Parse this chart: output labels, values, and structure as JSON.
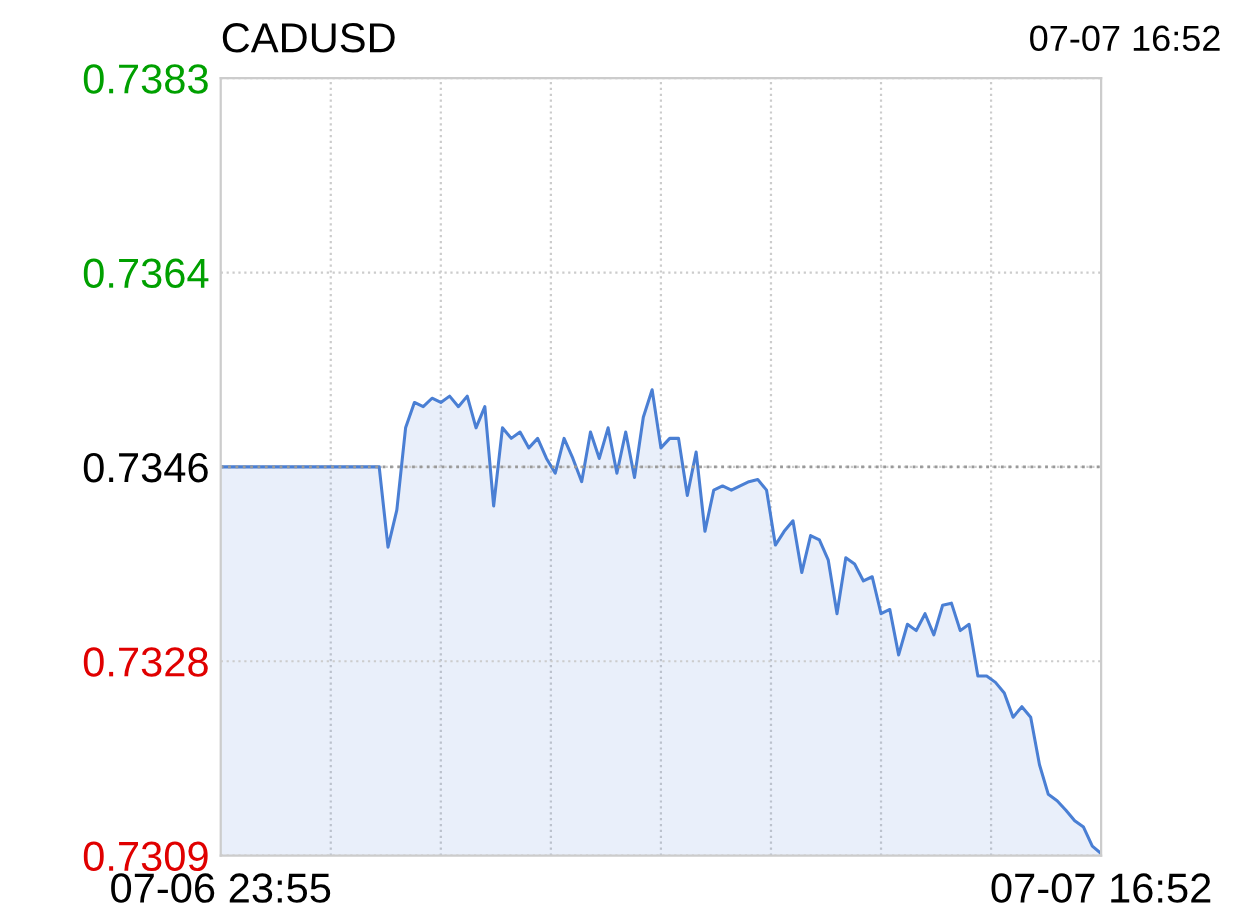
{
  "chart_data": {
    "type": "area",
    "title": "CADUSD",
    "annotations": [
      "07-07 16:52"
    ],
    "categories": [
      "07-06 23:55",
      null,
      null,
      null,
      null,
      null,
      null,
      null,
      null,
      null,
      null,
      null,
      null,
      null,
      null,
      null,
      null,
      null,
      null,
      null,
      null,
      null,
      null,
      null,
      null,
      null,
      null,
      null,
      null,
      null,
      null,
      null,
      null,
      null,
      null,
      null,
      null,
      null,
      null,
      null,
      null,
      null,
      null,
      null,
      null,
      null,
      null,
      null,
      null,
      null,
      null,
      null,
      null,
      null,
      null,
      null,
      null,
      null,
      null,
      null,
      null,
      null,
      null,
      null,
      null,
      null,
      null,
      null,
      null,
      null,
      null,
      null,
      null,
      null,
      null,
      null,
      null,
      null,
      null,
      null,
      null,
      null,
      null,
      null,
      null,
      null,
      null,
      null,
      null,
      null,
      null,
      null,
      null,
      null,
      null,
      null,
      null,
      null,
      null,
      null,
      "07-07 16:52"
    ],
    "series": [
      {
        "color": "#4a7fd4",
        "values": [
          0.7346,
          0.7346,
          0.7346,
          0.7346,
          0.7346,
          0.7346,
          0.7346,
          0.7346,
          0.7346,
          0.7346,
          0.7346,
          0.7346,
          0.7346,
          0.7346,
          0.7346,
          0.7346,
          0.7346,
          0.7346,
          0.7346,
          0.73384,
          0.73419,
          0.73497,
          0.73521,
          0.73517,
          0.73525,
          0.73521,
          0.73527,
          0.73517,
          0.73527,
          0.73497,
          0.73517,
          0.73423,
          0.73497,
          0.73487,
          0.73493,
          0.73478,
          0.73487,
          0.73468,
          0.73454,
          0.73487,
          0.73468,
          0.73446,
          0.73493,
          0.73468,
          0.73497,
          0.73454,
          0.73493,
          0.7345,
          0.73507,
          0.73533,
          0.73478,
          0.73487,
          0.73487,
          0.73433,
          0.73474,
          0.73399,
          0.73438,
          0.73442,
          0.73438,
          0.73442,
          0.73446,
          0.73448,
          0.73438,
          0.73386,
          0.73399,
          0.73409,
          0.7336,
          0.73395,
          0.73391,
          0.73372,
          0.73321,
          0.73374,
          0.73368,
          0.73352,
          0.73356,
          0.73321,
          0.73325,
          0.73282,
          0.73311,
          0.73305,
          0.73321,
          0.73301,
          0.73329,
          0.73331,
          0.73305,
          0.73311,
          0.73262,
          0.73262,
          0.73256,
          0.73246,
          0.73223,
          0.73233,
          0.73223,
          0.73178,
          0.7315,
          0.73144,
          0.73135,
          0.73125,
          0.73119,
          0.73101,
          0.73094
        ]
      }
    ],
    "ylim": [
      0.73092,
      0.73828
    ],
    "yticks": [
      {
        "value": 0.73092,
        "label": "0.7309"
      },
      {
        "value": 0.73276,
        "label": "0.7328"
      },
      {
        "value": 0.7346,
        "label": "0.7346"
      },
      {
        "value": 0.73644,
        "label": "0.7364"
      },
      {
        "value": 0.73828,
        "label": "0.7383"
      }
    ],
    "ref_lines": [
      {
        "axis": "y",
        "value": 0.7346,
        "color": "#999999",
        "line_style": "dotted"
      }
    ],
    "grid": true
  }
}
